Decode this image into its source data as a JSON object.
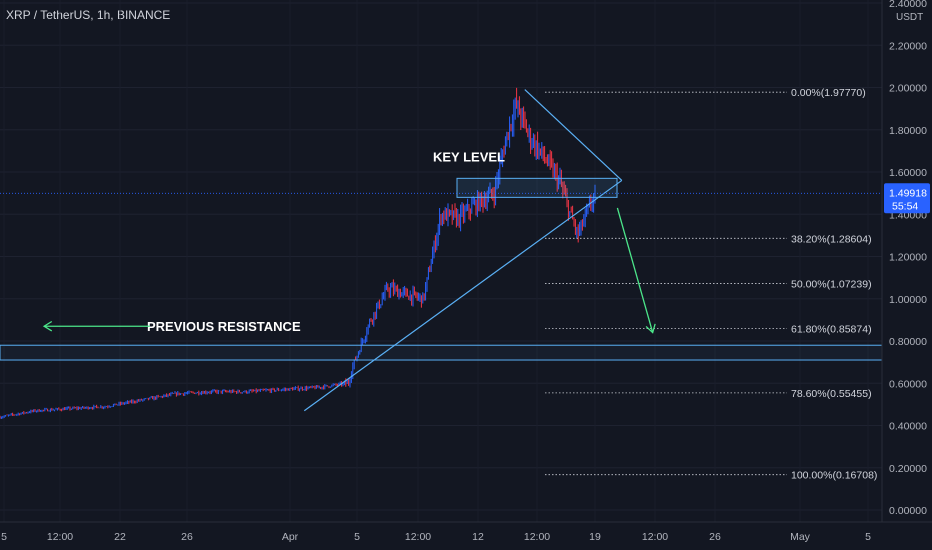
{
  "header": {
    "title": "XRP / TetherUS, 1h, BINANCE"
  },
  "chart_data": {
    "type": "candlestick",
    "symbol": "XRP / TetherUS",
    "interval": "1h",
    "exchange": "BINANCE",
    "y_axis": {
      "unit": "USDT",
      "ylim": [
        0.0,
        2.4
      ],
      "ticks": [
        "2.40000",
        "2.20000",
        "2.00000",
        "1.80000",
        "1.60000",
        "1.40000",
        "1.20000",
        "1.00000",
        "0.80000",
        "0.60000",
        "0.40000",
        "0.20000",
        "0.00000"
      ],
      "tick_values": [
        2.4,
        2.2,
        2.0,
        1.8,
        1.6,
        1.4,
        1.2,
        1.0,
        0.8,
        0.6,
        0.4,
        0.2,
        0.0
      ]
    },
    "x_axis": {
      "ticks": [
        "5",
        "12:00",
        "22",
        "26",
        "Apr",
        "5",
        "12:00",
        "12",
        "12:00",
        "19",
        "12:00",
        "26",
        "May",
        "5"
      ]
    },
    "current_price": {
      "value": 1.49918,
      "label": "1.49918",
      "countdown": "55:54"
    },
    "price_path": [
      [
        0.0,
        0.44
      ],
      [
        0.04,
        0.47
      ],
      [
        0.08,
        0.48
      ],
      [
        0.12,
        0.49
      ],
      [
        0.16,
        0.52
      ],
      [
        0.2,
        0.55
      ],
      [
        0.24,
        0.56
      ],
      [
        0.28,
        0.56
      ],
      [
        0.32,
        0.57
      ],
      [
        0.36,
        0.58
      ],
      [
        0.395,
        0.6
      ],
      [
        0.4,
        0.68
      ],
      [
        0.42,
        0.9
      ],
      [
        0.44,
        1.05
      ],
      [
        0.46,
        1.02
      ],
      [
        0.48,
        1.0
      ],
      [
        0.5,
        1.4
      ],
      [
        0.52,
        1.38
      ],
      [
        0.54,
        1.45
      ],
      [
        0.56,
        1.5
      ],
      [
        0.575,
        1.78
      ],
      [
        0.585,
        1.92
      ],
      [
        0.6,
        1.77
      ],
      [
        0.62,
        1.65
      ],
      [
        0.635,
        1.55
      ],
      [
        0.645,
        1.42
      ],
      [
        0.655,
        1.3
      ],
      [
        0.665,
        1.4
      ],
      [
        0.675,
        1.5
      ]
    ],
    "fibonacci": [
      {
        "label": "0.00%(1.97770)",
        "level": 0.0,
        "price": 1.9777
      },
      {
        "label": "38.20%(1.28604)",
        "level": 0.382,
        "price": 1.28604
      },
      {
        "label": "50.00%(1.07239)",
        "level": 0.5,
        "price": 1.07239
      },
      {
        "label": "61.80%(0.85874)",
        "level": 0.618,
        "price": 0.85874
      },
      {
        "label": "78.60%(0.55455)",
        "level": 0.786,
        "price": 0.55455
      },
      {
        "label": "100.00%(0.16708)",
        "level": 1.0,
        "price": 0.16708
      }
    ],
    "zones": [
      {
        "name": "key-level",
        "label": "KEY LEVEL",
        "y_top": 1.57,
        "y_bottom": 1.48
      },
      {
        "name": "previous-resistance",
        "label": "PREVIOUS RESISTANCE",
        "y_top": 0.78,
        "y_bottom": 0.71
      }
    ],
    "trendlines": [
      {
        "name": "rising-support",
        "points": [
          [
            0.345,
            0.47
          ],
          [
            0.705,
            1.56
          ]
        ]
      },
      {
        "name": "descending-resistance",
        "points": [
          [
            0.595,
            1.99
          ],
          [
            0.705,
            1.56
          ]
        ]
      }
    ],
    "arrows": [
      {
        "name": "projection-arrow",
        "from": [
          0.7,
          1.43
        ],
        "to": [
          0.74,
          0.84
        ]
      },
      {
        "name": "resistance-arrow",
        "from": [
          0.17,
          0.87
        ],
        "to": [
          0.05,
          0.87
        ]
      }
    ],
    "colors": {
      "background": "#131722",
      "up": "#2962ff",
      "down": "#f23645",
      "zone": "#5ab0f5",
      "arrow_green": "#4ce68a",
      "price_badge": "#2962ff"
    }
  }
}
